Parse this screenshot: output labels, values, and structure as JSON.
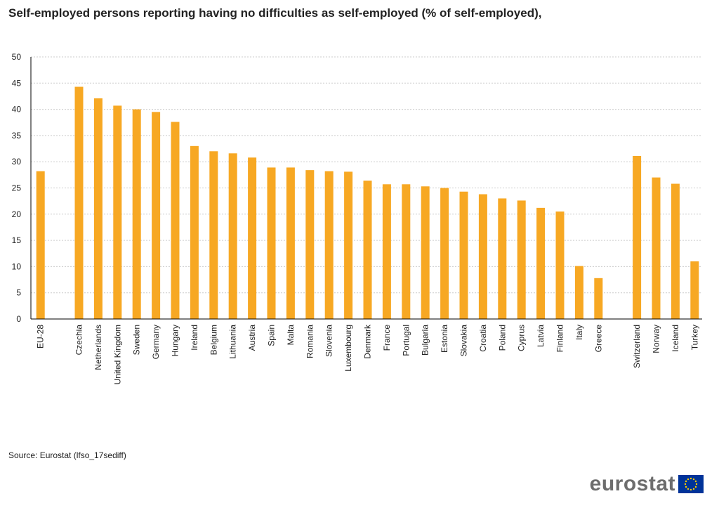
{
  "title": "Self-employed persons reporting having no difficulties   as self-employed (% of self-employed),",
  "source": "Source: Eurostat (lfso_17sediff)",
  "logo": {
    "text": "eurostat",
    "flag_color": "#003399",
    "star_color": "#ffcc00"
  },
  "colors": {
    "bar": "#f7a823",
    "grid": "#cccccc",
    "axis": "#000000"
  },
  "chart_data": {
    "type": "bar",
    "title": "Self-employed persons reporting having no difficulties   as self-employed (% of self-employed),",
    "xlabel": "",
    "ylabel": "",
    "ylim": [
      0,
      50
    ],
    "yticks": [
      0,
      5,
      10,
      15,
      20,
      25,
      30,
      35,
      40,
      45,
      50
    ],
    "grid": true,
    "legend": "none",
    "groups": [
      {
        "categories": [
          "EU-28"
        ],
        "values": [
          28.2
        ]
      },
      {
        "categories": [
          "Czechia",
          "Netherlands",
          "United Kingdom",
          "Sweden",
          "Germany",
          "Hungary",
          "Ireland",
          "Belgium",
          "Lithuania",
          "Austria",
          "Spain",
          "Malta",
          "Romania",
          "Slovenia",
          "Luxembourg",
          "Denmark",
          "France",
          "Portugal",
          "Bulgaria",
          "Estonia",
          "Slovakia",
          "Croatia",
          "Poland",
          "Cyprus",
          "Latvia",
          "Finland",
          "Italy",
          "Greece"
        ],
        "values": [
          44.3,
          42.1,
          40.7,
          40.0,
          39.5,
          37.6,
          33.0,
          32.0,
          31.6,
          30.8,
          28.9,
          28.9,
          28.4,
          28.2,
          28.1,
          26.4,
          25.7,
          25.7,
          25.3,
          25.0,
          24.3,
          23.8,
          23.0,
          22.6,
          21.2,
          20.5,
          10.1,
          7.8
        ]
      },
      {
        "categories": [
          "Switzerland",
          "Norway",
          "Iceland",
          "Turkey"
        ],
        "values": [
          31.1,
          27.0,
          25.8,
          11.0
        ]
      }
    ]
  }
}
